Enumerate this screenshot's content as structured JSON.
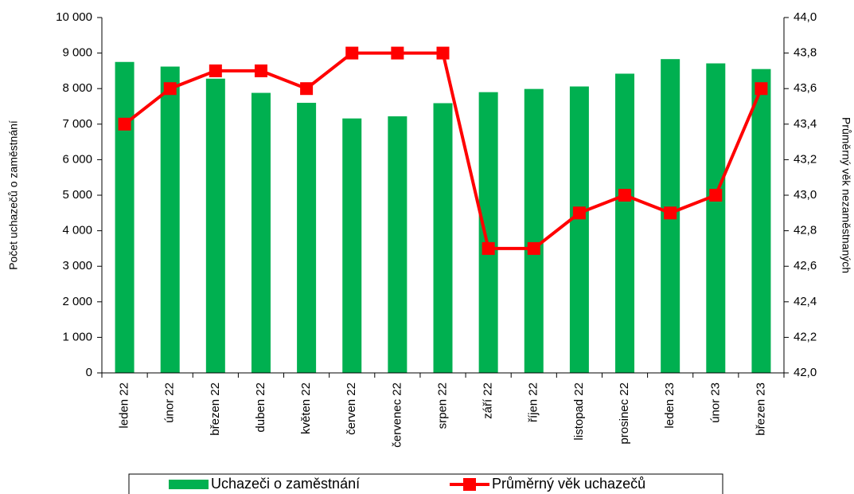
{
  "chart_data": {
    "type": "bar_line",
    "categories": [
      "leden 22",
      "únor 22",
      "březen 22",
      "duben 22",
      "květen 22",
      "červen 22",
      "červenec 22",
      "srpen 22",
      "září 22",
      "říjen 22",
      "listopad 22",
      "prosinec 22",
      "leden 23",
      "únor 23",
      "březen 23"
    ],
    "series": [
      {
        "name": "Uchazeči o zaměstnání",
        "type": "bar",
        "color": "#00b050",
        "values": [
          8750,
          8620,
          8280,
          7880,
          7600,
          7160,
          7220,
          7590,
          7900,
          7990,
          8060,
          8420,
          8830,
          8710,
          8550
        ]
      },
      {
        "name": "Průměrný věk uchazečů",
        "type": "line",
        "axis": "y2",
        "color": "#ff0000",
        "values": [
          43.4,
          43.6,
          43.7,
          43.7,
          43.6,
          43.8,
          43.8,
          43.8,
          42.7,
          42.7,
          42.9,
          43.0,
          42.9,
          43.0,
          43.6
        ]
      }
    ],
    "ylabel": "Počet uchazečů o zaměstnání",
    "y2label": "Průměrný věk nezaměstnaných",
    "ylim": [
      0,
      10000
    ],
    "yticks": [
      0,
      {
        "value": 1000,
        "label": "1 000"
      },
      {
        "value": 2000,
        "label": "2 000"
      },
      {
        "value": 3000,
        "label": "3 000"
      },
      {
        "value": 4000,
        "label": "4 000"
      },
      {
        "value": 5000,
        "label": "5 000"
      },
      {
        "value": 6000,
        "label": "6 000"
      },
      {
        "value": 7000,
        "label": "7 000"
      },
      {
        "value": 8000,
        "label": "8 000"
      },
      {
        "value": 9000,
        "label": "9 000"
      },
      {
        "value": 10000,
        "label": "10 000"
      }
    ],
    "y2lim": [
      42.0,
      44.0
    ],
    "y2ticks": [
      {
        "value": 42.0,
        "label": "42,0"
      },
      {
        "value": 42.2,
        "label": "42,2"
      },
      {
        "value": 42.4,
        "label": "42,4"
      },
      {
        "value": 42.6,
        "label": "42,6"
      },
      {
        "value": 42.8,
        "label": "42,8"
      },
      {
        "value": 43.0,
        "label": "43,0"
      },
      {
        "value": 43.2,
        "label": "43,2"
      },
      {
        "value": 43.4,
        "label": "43,4"
      },
      {
        "value": 43.6,
        "label": "43,6"
      },
      {
        "value": 43.8,
        "label": "43,8"
      },
      {
        "value": 44.0,
        "label": "44,0"
      }
    ],
    "legend": "bottom"
  }
}
